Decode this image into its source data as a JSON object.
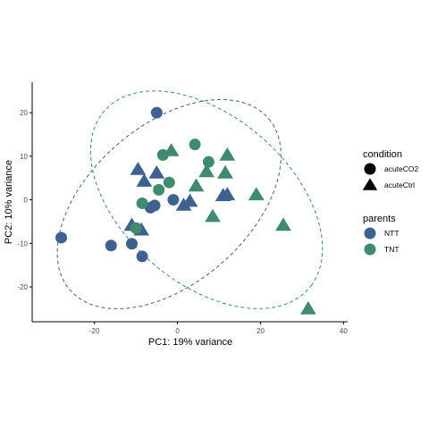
{
  "chart_data": {
    "type": "scatter",
    "xlabel": "PC1: 19% variance",
    "ylabel": "PC2: 10% variance",
    "xlim": [
      -35,
      41
    ],
    "ylim": [
      -28,
      27
    ],
    "x_ticks": [
      -20,
      0,
      20,
      40
    ],
    "y_ticks": [
      -20,
      -10,
      0,
      10,
      20
    ],
    "grid": false,
    "legend_placement": "right",
    "colors": {
      "NTT": "#3f6190",
      "TNT": "#3f8b70",
      "axis": "#000000"
    },
    "legends": [
      {
        "title": "condition",
        "kind": "shape",
        "entries": [
          {
            "label": "acuteCO2",
            "shape": "circle"
          },
          {
            "label": "acuteCtrl",
            "shape": "triangle"
          }
        ]
      },
      {
        "title": "parents",
        "kind": "color",
        "entries": [
          {
            "label": "NTT",
            "color": "#3f6190"
          },
          {
            "label": "TNT",
            "color": "#3f8b70"
          }
        ]
      }
    ],
    "series": [
      {
        "name": "NTT",
        "color": "#3f6190",
        "points": [
          {
            "x": -5,
            "y": 20,
            "shape": "circle"
          },
          {
            "x": -28,
            "y": -8.7,
            "shape": "circle"
          },
          {
            "x": -16,
            "y": -10.5,
            "shape": "circle"
          },
          {
            "x": -11,
            "y": -10.1,
            "shape": "circle"
          },
          {
            "x": -8.5,
            "y": -13,
            "shape": "circle"
          },
          {
            "x": -1,
            "y": 0,
            "shape": "circle"
          },
          {
            "x": -5.5,
            "y": -1.3,
            "shape": "circle"
          },
          {
            "x": -6.5,
            "y": -1.8,
            "shape": "circle"
          },
          {
            "x": -9.5,
            "y": 7,
            "shape": "triangle"
          },
          {
            "x": -8,
            "y": 4.3,
            "shape": "triangle"
          },
          {
            "x": -5,
            "y": 6.2,
            "shape": "triangle"
          },
          {
            "x": 1.5,
            "y": -1.2,
            "shape": "triangle"
          },
          {
            "x": 3,
            "y": -0.3,
            "shape": "triangle"
          },
          {
            "x": 11,
            "y": 1,
            "shape": "triangle"
          },
          {
            "x": 12,
            "y": 1.2,
            "shape": "triangle"
          },
          {
            "x": -11,
            "y": -5.8,
            "shape": "triangle"
          },
          {
            "x": -8.7,
            "y": -6.9,
            "shape": "triangle"
          }
        ]
      },
      {
        "name": "TNT",
        "color": "#3f8b70",
        "points": [
          {
            "x": -3.5,
            "y": 10.3,
            "shape": "circle"
          },
          {
            "x": 4.2,
            "y": 12.7,
            "shape": "circle"
          },
          {
            "x": 7.5,
            "y": 8.7,
            "shape": "circle"
          },
          {
            "x": -2,
            "y": 4,
            "shape": "circle"
          },
          {
            "x": -4.5,
            "y": 2.3,
            "shape": "circle"
          },
          {
            "x": -8.5,
            "y": -0.8,
            "shape": "circle"
          },
          {
            "x": -10,
            "y": -6.5,
            "shape": "circle"
          },
          {
            "x": -1.5,
            "y": 11.3,
            "shape": "triangle"
          },
          {
            "x": 12,
            "y": 10.3,
            "shape": "triangle"
          },
          {
            "x": 7,
            "y": 6.5,
            "shape": "triangle"
          },
          {
            "x": 11.5,
            "y": 6.2,
            "shape": "triangle"
          },
          {
            "x": 4.5,
            "y": 3.2,
            "shape": "triangle"
          },
          {
            "x": 19,
            "y": 1.2,
            "shape": "triangle"
          },
          {
            "x": 8.5,
            "y": -3.8,
            "shape": "triangle"
          },
          {
            "x": 25.5,
            "y": -5.8,
            "shape": "triangle"
          },
          {
            "x": 31.5,
            "y": -25,
            "shape": "triangle"
          }
        ]
      }
    ],
    "ellipses": [
      {
        "group": "NTT",
        "color": "#3f6190",
        "cx": -2,
        "cy": -1,
        "rx": 31,
        "ry": 18.5,
        "angle_deg": 38,
        "style": "dashed"
      },
      {
        "group": "TNT",
        "color": "#3f8b70",
        "cx": 7,
        "cy": 0,
        "rx": 32,
        "ry": 19.5,
        "angle_deg": -38,
        "style": "dashed"
      }
    ]
  }
}
